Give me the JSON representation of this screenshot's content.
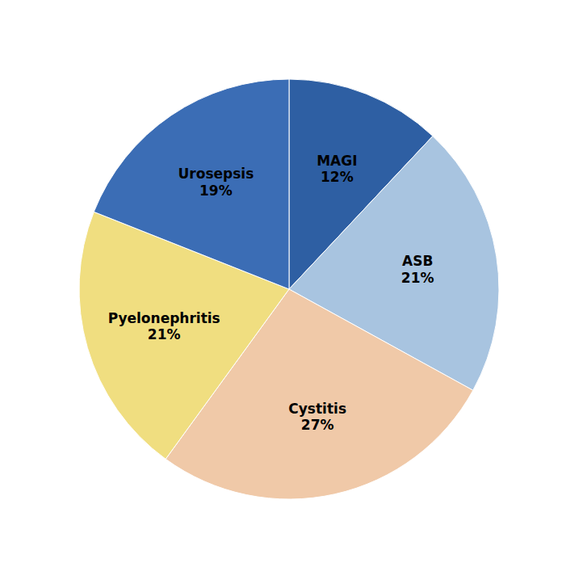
{
  "chart_data": {
    "type": "pie",
    "categories": [
      "MAGI",
      "ASB",
      "Cystitis",
      "Pyelonephritis",
      "Urosepsis"
    ],
    "values": [
      12,
      21,
      27,
      21,
      19
    ],
    "value_labels": [
      "12%",
      "21%",
      "27%",
      "21%",
      "19%"
    ],
    "colors": [
      "#2E5FA3",
      "#A8C4E0",
      "#F0C9A8",
      "#F0DE80",
      "#3B6DB5"
    ],
    "data_labels": true
  }
}
